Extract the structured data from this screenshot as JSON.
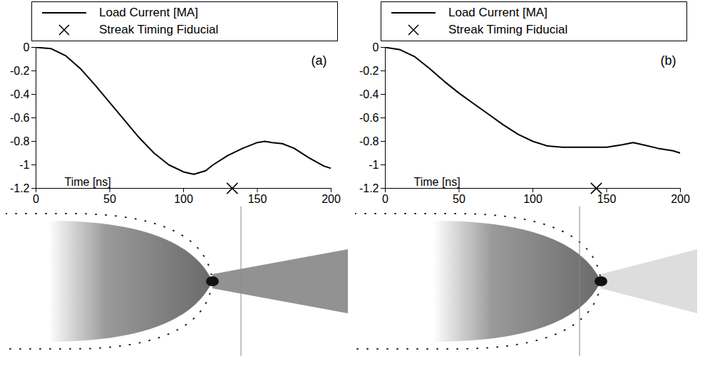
{
  "chart_data": [
    {
      "type": "line",
      "title": "(a)",
      "xlabel": "Time [ns]",
      "legend": "top",
      "xlim": [
        0,
        200
      ],
      "xticks": [
        0,
        50,
        100,
        150,
        200
      ],
      "ylim": [
        -1.2,
        0
      ],
      "yticks": [
        0,
        -0.2,
        -0.4,
        -0.6,
        -0.8,
        -1,
        -1.2
      ],
      "series": [
        {
          "name": "Load Current [MA]",
          "color": "#000000",
          "line_style": "solid",
          "x": [
            0,
            10,
            20,
            30,
            40,
            50,
            60,
            70,
            80,
            90,
            100,
            107,
            115,
            120,
            130,
            140,
            150,
            155,
            160,
            167,
            175,
            185,
            195,
            200
          ],
          "values": [
            0,
            -0.01,
            -0.07,
            -0.18,
            -0.32,
            -0.47,
            -0.62,
            -0.77,
            -0.9,
            -1.0,
            -1.06,
            -1.08,
            -1.05,
            -1.0,
            -0.92,
            -0.86,
            -0.81,
            -0.8,
            -0.81,
            -0.82,
            -0.86,
            -0.94,
            -1.01,
            -1.03
          ]
        },
        {
          "name": "Streak Timing Fiducial",
          "type": "scatter",
          "marker": "x",
          "color": "#000000",
          "x": [
            133
          ],
          "values": [
            -1.2
          ]
        }
      ]
    },
    {
      "type": "line",
      "title": "(b)",
      "xlabel": "Time [ns]",
      "legend": "top",
      "xlim": [
        0,
        200
      ],
      "xticks": [
        0,
        50,
        100,
        150,
        200
      ],
      "ylim": [
        -1.2,
        0
      ],
      "yticks": [
        0,
        -0.2,
        -0.4,
        -0.6,
        -0.8,
        -1,
        -1.2
      ],
      "series": [
        {
          "name": "Load Current [MA]",
          "color": "#000000",
          "line_style": "solid",
          "x": [
            0,
            10,
            20,
            30,
            40,
            50,
            60,
            70,
            80,
            90,
            100,
            110,
            120,
            130,
            140,
            150,
            160,
            168,
            175,
            185,
            195,
            200
          ],
          "values": [
            0,
            -0.02,
            -0.08,
            -0.18,
            -0.29,
            -0.39,
            -0.48,
            -0.57,
            -0.66,
            -0.74,
            -0.8,
            -0.84,
            -0.85,
            -0.85,
            -0.85,
            -0.85,
            -0.83,
            -0.81,
            -0.83,
            -0.86,
            -0.88,
            -0.9
          ]
        },
        {
          "name": "Streak Timing Fiducial",
          "type": "scatter",
          "marker": "x",
          "color": "#000000",
          "x": [
            143
          ],
          "values": [
            -1.2
          ]
        }
      ]
    }
  ]
}
